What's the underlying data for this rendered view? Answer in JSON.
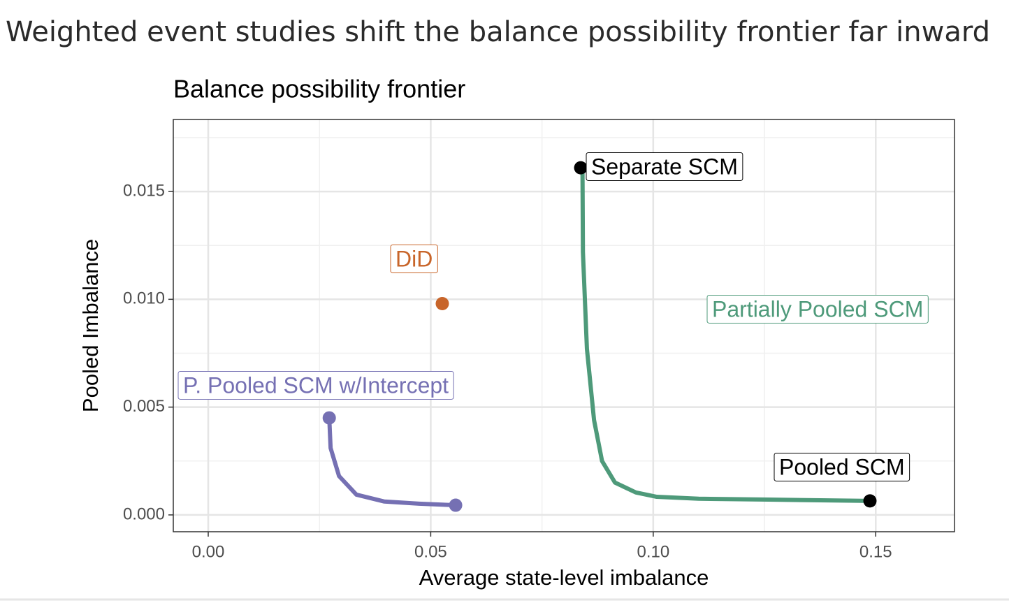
{
  "slide_title": "Weighted event studies shift the balance possibility frontier far inward",
  "chart_data": {
    "type": "line",
    "title": "Balance possibility frontier",
    "x_label": "Average state-level imbalance",
    "y_label": "Pooled Imbalance",
    "xlim": [
      -0.00785,
      0.1677
    ],
    "ylim": [
      -0.00078,
      0.01834
    ],
    "xticks": [
      {
        "value": 0,
        "label": "0.00"
      },
      {
        "value": 0.05,
        "label": "0.05"
      },
      {
        "value": 0.1,
        "label": "0.10"
      },
      {
        "value": 0.15,
        "label": "0.15"
      }
    ],
    "yticks": [
      {
        "value": 0,
        "label": "0.000"
      },
      {
        "value": 0.005,
        "label": "0.005"
      },
      {
        "value": 0.01,
        "label": "0.010"
      },
      {
        "value": 0.015,
        "label": "0.015"
      }
    ],
    "x_minor_grid": [
      0.025,
      0.075,
      0.125
    ],
    "y_minor_grid": [
      0.0025,
      0.0075,
      0.0125,
      0.0175
    ],
    "grid": true,
    "series": [
      {
        "name": "Partially Pooled SCM",
        "color": "#4e9a7a",
        "kind": "line",
        "x": [
          0.0841,
          0.0842,
          0.0851,
          0.0867,
          0.0885,
          0.0914,
          0.0961,
          0.1008,
          0.1102,
          0.1259,
          0.1487
        ],
        "values": [
          0.0161,
          0.0122,
          0.0077,
          0.0044,
          0.0025,
          0.0015,
          0.00104,
          0.00084,
          0.00075,
          0.00071,
          0.00065
        ]
      },
      {
        "name": "P. Pooled SCM w/Intercept",
        "color": "#7570b3",
        "kind": "line",
        "end_points": true,
        "x": [
          0.0272,
          0.0275,
          0.0294,
          0.0333,
          0.0396,
          0.0474,
          0.0556
        ],
        "values": [
          0.0045,
          0.0031,
          0.0018,
          0.00094,
          0.00062,
          0.00052,
          0.00045
        ]
      },
      {
        "name": "DiD",
        "color": "#c8652a",
        "kind": "point",
        "x": [
          0.0526
        ],
        "values": [
          0.0098
        ]
      },
      {
        "name": "Separate SCM",
        "color": "#000000",
        "kind": "point",
        "x": [
          0.0837
        ],
        "values": [
          0.0161
        ]
      },
      {
        "name": "Pooled SCM",
        "color": "#000000",
        "kind": "point",
        "x": [
          0.1487
        ],
        "values": [
          0.00065
        ]
      }
    ]
  }
}
